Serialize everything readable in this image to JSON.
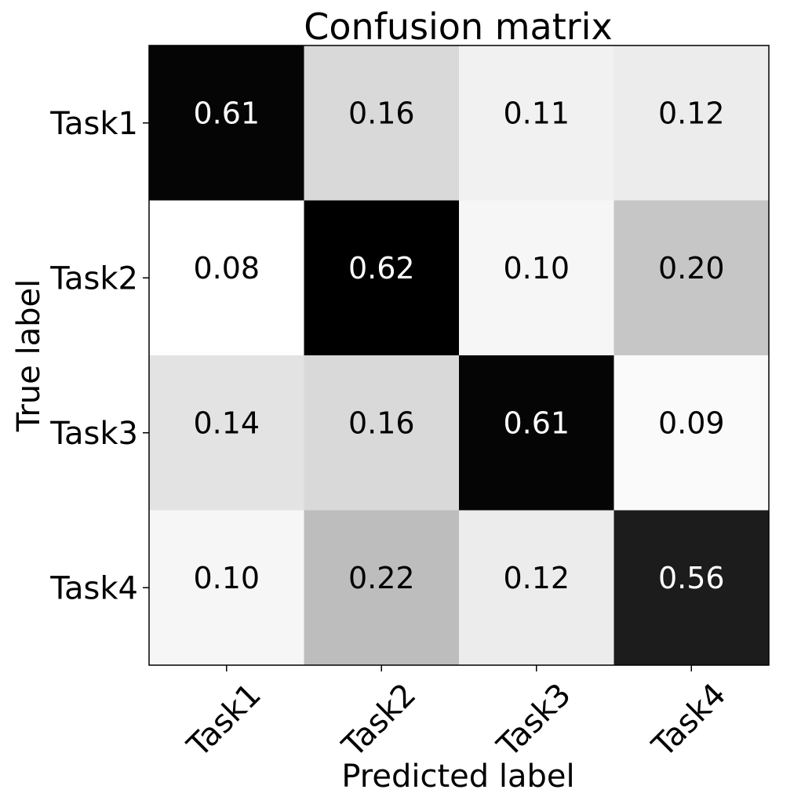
{
  "chart_data": {
    "type": "heatmap",
    "title": "Confusion matrix",
    "xlabel": "Predicted label",
    "ylabel": "True label",
    "x_categories": [
      "Task1",
      "Task2",
      "Task3",
      "Task4"
    ],
    "y_categories": [
      "Task1",
      "Task2",
      "Task3",
      "Task4"
    ],
    "values": [
      [
        0.61,
        0.16,
        0.11,
        0.12
      ],
      [
        0.08,
        0.62,
        0.1,
        0.2
      ],
      [
        0.14,
        0.16,
        0.61,
        0.09
      ],
      [
        0.1,
        0.22,
        0.12,
        0.56
      ]
    ],
    "value_labels": [
      [
        "0.61",
        "0.16",
        "0.11",
        "0.12"
      ],
      [
        "0.08",
        "0.62",
        "0.10",
        "0.20"
      ],
      [
        "0.14",
        "0.16",
        "0.61",
        "0.09"
      ],
      [
        "0.10",
        "0.22",
        "0.12",
        "0.56"
      ]
    ],
    "colormap": "Greys",
    "colors": {
      "low": "#ffffff",
      "high": "#000000",
      "text_dark": "#000000",
      "text_light": "#ffffff"
    }
  }
}
